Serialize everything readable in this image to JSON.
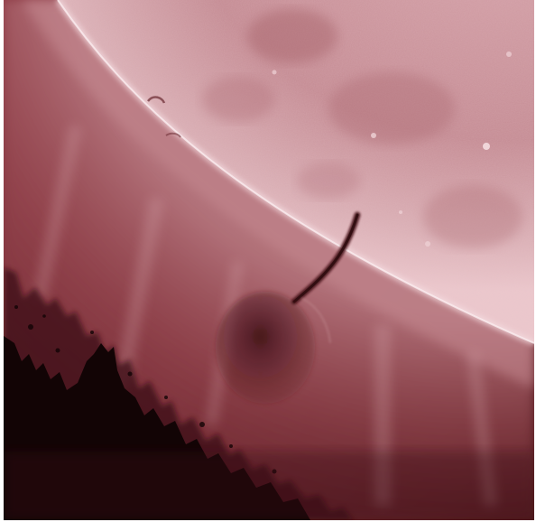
{
  "image": {
    "subject": "solar-limb",
    "palette": {
      "disk_bright": "#d9a3aa",
      "disk_mid": "#b97a82",
      "corona": "#9a4f58",
      "space_dark": "#5a1d23",
      "shadow": "#0f0405",
      "limb_glow": "#f1d1d6"
    }
  }
}
